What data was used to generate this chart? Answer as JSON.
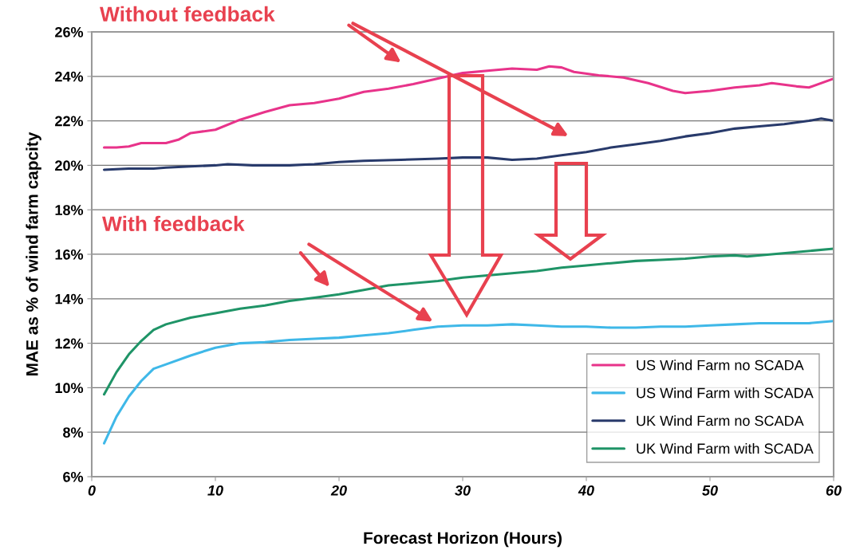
{
  "chart_data": {
    "type": "line",
    "xlabel": "Forecast Horizon (Hours)",
    "ylabel": "MAE as % of wind farm capcity",
    "xlim": [
      0,
      60
    ],
    "xticks": [
      0,
      10,
      20,
      30,
      40,
      50,
      60
    ],
    "ylim": [
      6,
      26
    ],
    "yticks": [
      {
        "value": 6,
        "label": "6%"
      },
      {
        "value": 8,
        "label": "8%"
      },
      {
        "value": 10,
        "label": "10%"
      },
      {
        "value": 12,
        "label": "12%"
      },
      {
        "value": 14,
        "label": "14%"
      },
      {
        "value": 16,
        "label": "16%"
      },
      {
        "value": 18,
        "label": "18%"
      },
      {
        "value": 20,
        "label": "20%"
      },
      {
        "value": 22,
        "label": "22%"
      },
      {
        "value": 24,
        "label": "24%"
      },
      {
        "value": 26,
        "label": "26%"
      }
    ],
    "grid": "y",
    "legend": "bottom right",
    "marker": "none",
    "line_style": "solid",
    "annotations": [
      "Without feedback",
      "With feedback"
    ],
    "series": [
      {
        "name": "US Wind Farm no SCADA",
        "color": "#e8338a",
        "x": [
          1,
          2,
          3,
          4,
          6,
          7,
          8,
          10,
          12,
          14,
          16,
          18,
          20,
          22,
          24,
          26,
          28,
          30,
          32,
          34,
          36,
          37,
          38,
          39,
          41,
          43,
          45,
          47,
          48,
          50,
          52,
          54,
          55,
          57,
          58,
          60
        ],
        "values": [
          20.8,
          20.8,
          20.85,
          21.0,
          21.0,
          21.15,
          21.45,
          21.6,
          22.05,
          22.4,
          22.7,
          22.8,
          23.0,
          23.3,
          23.45,
          23.65,
          23.9,
          24.15,
          24.25,
          24.35,
          24.3,
          24.45,
          24.4,
          24.2,
          24.05,
          23.95,
          23.7,
          23.35,
          23.25,
          23.35,
          23.5,
          23.6,
          23.7,
          23.55,
          23.5,
          23.9
        ]
      },
      {
        "name": "US Wind Farm with SCADA",
        "color": "#3fb8e8",
        "x": [
          1,
          2,
          3,
          4,
          5,
          6,
          8,
          10,
          12,
          14,
          16,
          18,
          20,
          22,
          24,
          26,
          28,
          30,
          32,
          34,
          36,
          38,
          40,
          42,
          44,
          46,
          48,
          50,
          52,
          54,
          56,
          58,
          60
        ],
        "values": [
          7.5,
          8.7,
          9.6,
          10.3,
          10.85,
          11.05,
          11.45,
          11.8,
          12.0,
          12.05,
          12.15,
          12.2,
          12.25,
          12.35,
          12.45,
          12.6,
          12.75,
          12.8,
          12.8,
          12.85,
          12.8,
          12.75,
          12.75,
          12.7,
          12.7,
          12.75,
          12.75,
          12.8,
          12.85,
          12.9,
          12.9,
          12.9,
          13.0
        ]
      },
      {
        "name": "UK Wind Farm no SCADA",
        "color": "#283a6b",
        "x": [
          1,
          3,
          5,
          6,
          8,
          10,
          11,
          13,
          16,
          18,
          20,
          22,
          25,
          28,
          30,
          32,
          34,
          36,
          38,
          40,
          42,
          44,
          46,
          48,
          50,
          52,
          54,
          56,
          58,
          59,
          60
        ],
        "values": [
          19.8,
          19.85,
          19.85,
          19.9,
          19.95,
          20.0,
          20.05,
          20.0,
          20.0,
          20.05,
          20.15,
          20.2,
          20.25,
          20.3,
          20.35,
          20.35,
          20.25,
          20.3,
          20.45,
          20.6,
          20.8,
          20.95,
          21.1,
          21.3,
          21.45,
          21.65,
          21.75,
          21.85,
          22.0,
          22.1,
          22.0
        ]
      },
      {
        "name": "UK Wind Farm with SCADA",
        "color": "#1f9467",
        "x": [
          1,
          2,
          3,
          4,
          5,
          6,
          8,
          10,
          12,
          14,
          16,
          18,
          20,
          22,
          24,
          26,
          28,
          30,
          32,
          34,
          36,
          38,
          40,
          42,
          44,
          46,
          48,
          50,
          52,
          53,
          55,
          57,
          60
        ],
        "values": [
          9.7,
          10.7,
          11.5,
          12.1,
          12.6,
          12.85,
          13.15,
          13.35,
          13.55,
          13.7,
          13.9,
          14.05,
          14.2,
          14.4,
          14.6,
          14.7,
          14.8,
          14.95,
          15.05,
          15.15,
          15.25,
          15.4,
          15.5,
          15.6,
          15.7,
          15.75,
          15.8,
          15.9,
          15.95,
          15.9,
          16.0,
          16.1,
          16.25
        ]
      }
    ]
  }
}
